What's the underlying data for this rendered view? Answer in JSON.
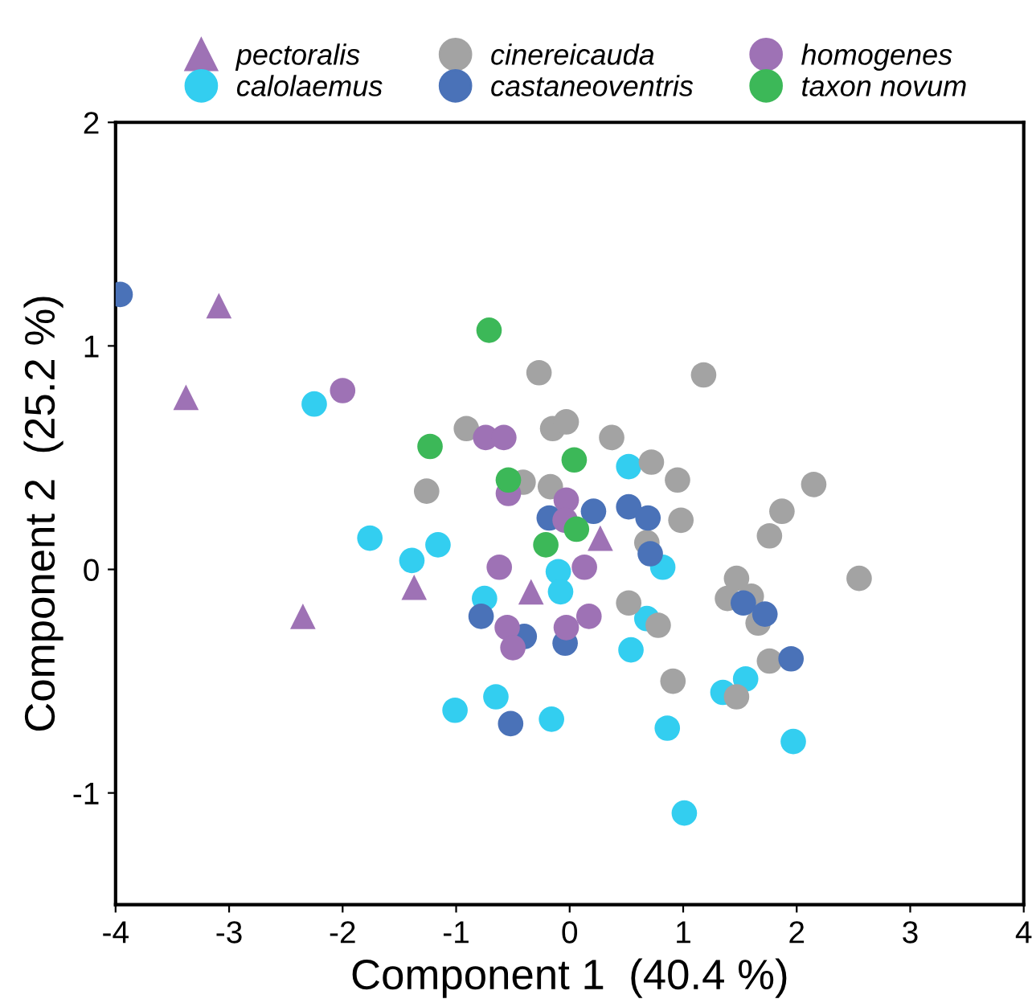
{
  "chart_data": {
    "type": "scatter",
    "xlabel": "Component 1  (40.4 %)",
    "ylabel": "Component 2  (25.2 %)",
    "xlim": [
      -4,
      4
    ],
    "xticks": [
      -4,
      -3,
      -2,
      -1,
      0,
      1,
      2,
      3,
      4
    ],
    "ylim": [
      -1.5,
      2
    ],
    "yticks": [
      -1,
      0,
      1,
      2
    ],
    "grid": false,
    "legend": "top",
    "series": [
      {
        "name": "pectoralis",
        "color": "#9e72b5",
        "marker": "triangle",
        "x": [
          -3.09,
          -3.38,
          -1.37,
          -2.35,
          -0.34,
          0.27
        ],
        "values": [
          1.18,
          0.77,
          -0.08,
          -0.21,
          -0.1,
          0.14
        ]
      },
      {
        "name": "calolaemus",
        "color": "#33cef0",
        "marker": "circle",
        "x": [
          -2.25,
          -1.76,
          -1.16,
          -1.39,
          -0.1,
          -0.08,
          -0.75,
          0.52,
          0.82,
          0.68,
          0.54,
          -1.01,
          -0.65,
          -0.16,
          0.86,
          1.01,
          1.97,
          1.55,
          1.35
        ],
        "values": [
          0.74,
          0.14,
          0.11,
          0.04,
          -0.01,
          -0.1,
          -0.13,
          0.46,
          0.01,
          -0.22,
          -0.36,
          -0.63,
          -0.57,
          -0.67,
          -0.71,
          -1.09,
          -0.77,
          -0.49,
          -0.55
        ]
      },
      {
        "name": "cinereicauda",
        "color": "#a3a3a3",
        "marker": "circle",
        "x": [
          -0.27,
          -0.91,
          -0.15,
          -0.03,
          -1.26,
          -0.41,
          -0.17,
          1.18,
          0.37,
          0.72,
          0.95,
          2.15,
          1.87,
          1.76,
          0.98,
          0.68,
          2.55,
          0.52,
          0.78,
          0.91,
          1.39,
          1.47,
          1.6,
          1.66,
          1.76,
          1.47
        ],
        "values": [
          0.88,
          0.63,
          0.63,
          0.66,
          0.35,
          0.39,
          0.37,
          0.87,
          0.59,
          0.48,
          0.4,
          0.38,
          0.26,
          0.15,
          0.22,
          0.12,
          -0.04,
          -0.15,
          -0.25,
          -0.5,
          -0.13,
          -0.04,
          -0.12,
          -0.24,
          -0.41,
          -0.57
        ]
      },
      {
        "name": "castaneoventris",
        "color": "#4a72b8",
        "marker": "circle",
        "x": [
          -3.96,
          -0.18,
          -0.78,
          -0.4,
          -0.04,
          0.21,
          0.52,
          0.69,
          0.71,
          -0.52,
          1.53,
          1.72,
          1.95
        ],
        "values": [
          1.23,
          0.23,
          -0.21,
          -0.3,
          -0.33,
          0.26,
          0.28,
          0.23,
          0.07,
          -0.69,
          -0.15,
          -0.2,
          -0.4
        ]
      },
      {
        "name": "homogenes",
        "color": "#9e72b5",
        "marker": "circle",
        "x": [
          -2.0,
          -0.74,
          -0.58,
          -0.54,
          -0.03,
          -0.04,
          -0.62,
          0.13,
          -0.55,
          -0.5,
          -0.03,
          0.17
        ],
        "values": [
          0.8,
          0.59,
          0.59,
          0.34,
          0.31,
          0.22,
          0.01,
          0.01,
          -0.26,
          -0.35,
          -0.26,
          -0.21
        ]
      },
      {
        "name": "taxon novum",
        "color": "#3cb858",
        "marker": "circle",
        "x": [
          -0.71,
          -1.23,
          -0.54,
          0.04,
          -0.21,
          0.06
        ],
        "values": [
          1.07,
          0.55,
          0.4,
          0.49,
          0.11,
          0.18
        ]
      }
    ]
  }
}
